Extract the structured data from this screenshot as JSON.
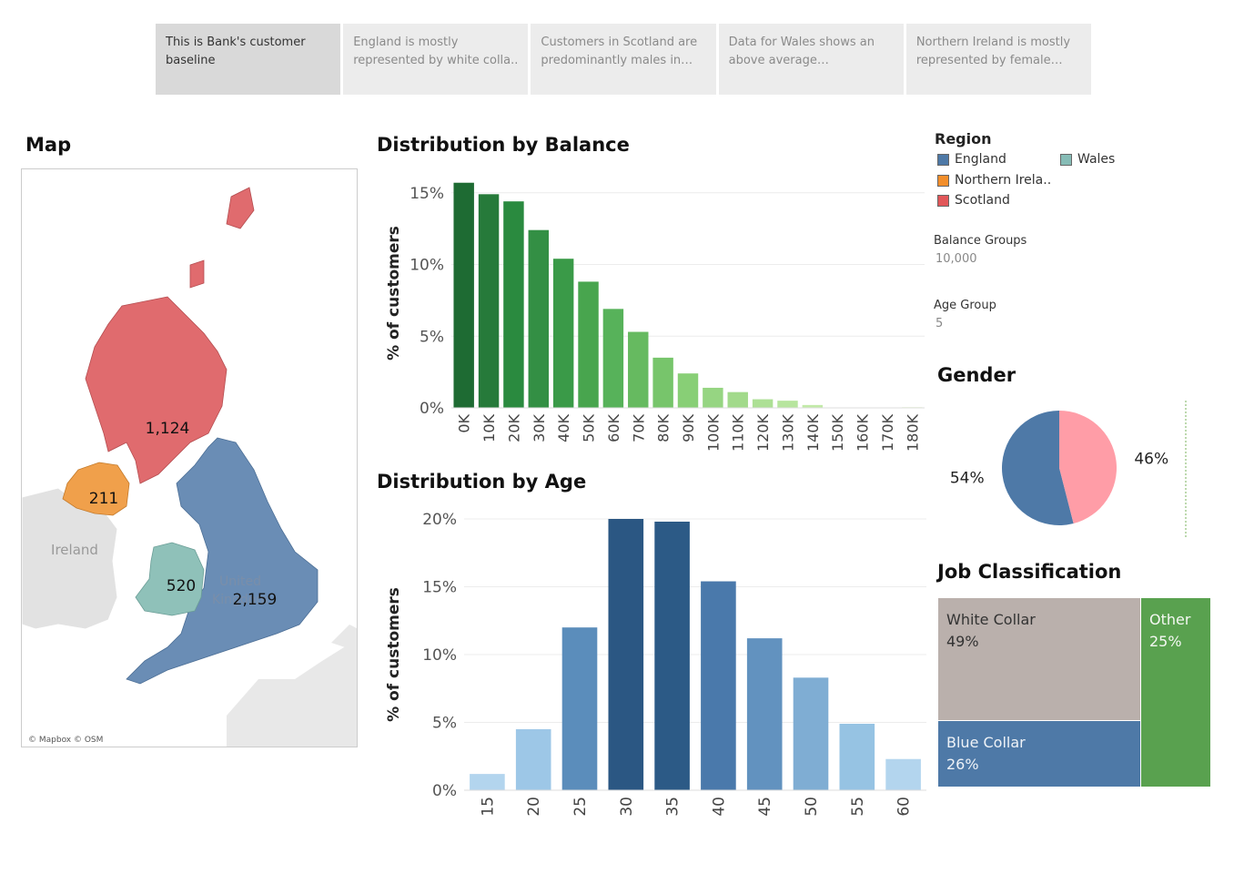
{
  "story_tabs": [
    {
      "label": "This is Bank's customer baseline",
      "active": true
    },
    {
      "label": "England is mostly represented by white colla..",
      "active": false
    },
    {
      "label": "Customers in Scotland are predominantly males in the..",
      "active": false
    },
    {
      "label": "Data for Wales shows an above average representat..",
      "active": false
    },
    {
      "label": "Northern Ireland is mostly represented by female cust..",
      "active": false
    }
  ],
  "map": {
    "title": "Map",
    "labels": {
      "ireland": "Ireland",
      "uk_line1": "United",
      "uk_line2": "Kingdom"
    },
    "regions": {
      "scotland": {
        "value": "1,124",
        "color": "#e06b6e"
      },
      "northern_ireland": {
        "value": "211",
        "color": "#f0a04b"
      },
      "wales": {
        "value": "520",
        "color": "#8fc1b9"
      },
      "england": {
        "value": "2,159",
        "color": "#6a8db5"
      }
    },
    "attribution": "© Mapbox © OSM"
  },
  "legend": {
    "title": "Region",
    "items": [
      {
        "label": "England",
        "color": "#4e79a7"
      },
      {
        "label": "Wales",
        "color": "#86bcb6"
      },
      {
        "label": "Northern Irela..",
        "color": "#f28e2b"
      },
      {
        "label": "Scotland",
        "color": "#e15759"
      }
    ]
  },
  "parameters": {
    "balance_groups_label": "Balance Groups",
    "balance_groups_value": "10,000",
    "age_group_label": "Age Group",
    "age_group_value": "5"
  },
  "chart_data": [
    {
      "type": "bar",
      "title": "Distribution by Balance",
      "ylabel": "% of customers",
      "categories": [
        "0K",
        "10K",
        "20K",
        "30K",
        "40K",
        "50K",
        "60K",
        "70K",
        "80K",
        "90K",
        "100K",
        "110K",
        "120K",
        "130K",
        "140K",
        "150K",
        "160K",
        "170K",
        "180K"
      ],
      "values": [
        15.7,
        14.9,
        14.4,
        12.4,
        10.4,
        8.8,
        6.9,
        5.3,
        3.5,
        2.4,
        1.4,
        1.1,
        0.6,
        0.5,
        0.2,
        0,
        0,
        0,
        0.05
      ],
      "ylim": [
        0,
        16
      ],
      "yticks": [
        "0%",
        "5%",
        "10%",
        "15%"
      ],
      "colors": [
        "#1e6b33",
        "#267a3a",
        "#2a8a3f",
        "#338f44",
        "#3a9a48",
        "#48a54e",
        "#57b25a",
        "#66ba60",
        "#77c56b",
        "#88cf76",
        "#96d582",
        "#a2da8b",
        "#ade095",
        "#b7e59e",
        "#c2eaa8",
        "#cdeeb3",
        "#d6f1bd",
        "#def4c6",
        "#e6f7cf"
      ],
      "grid": true
    },
    {
      "type": "bar",
      "title": "Distribution by Age",
      "ylabel": "% of customers",
      "categories": [
        "15",
        "20",
        "25",
        "30",
        "35",
        "40",
        "45",
        "50",
        "55",
        "60"
      ],
      "values": [
        1.2,
        4.5,
        12.0,
        20.0,
        19.8,
        15.4,
        11.2,
        8.3,
        4.9,
        2.3
      ],
      "ylim": [
        0,
        20
      ],
      "yticks": [
        "0%",
        "5%",
        "10%",
        "15%",
        "20%"
      ],
      "colors": [
        "#b3d5ee",
        "#9dc7e7",
        "#5b8dbb",
        "#2b5783",
        "#2c5a86",
        "#4a79ab",
        "#6292bf",
        "#7fadd3",
        "#96c3e3",
        "#b3d5ee"
      ],
      "grid": true
    },
    {
      "type": "pie",
      "title": "Gender",
      "slices": [
        {
          "label": "54%",
          "value": 54,
          "color": "#4e79a7"
        },
        {
          "label": "46%",
          "value": 46,
          "color": "#ff9da7"
        }
      ]
    },
    {
      "type": "table",
      "title": "Job Classification",
      "cells": [
        {
          "name": "White Collar",
          "pct": "49%",
          "value": 49,
          "color": "#bab0ac"
        },
        {
          "name": "Blue Collar",
          "pct": "26%",
          "value": 26,
          "color": "#4e79a7"
        },
        {
          "name": "Other",
          "pct": "25%",
          "value": 25,
          "color": "#59a14f"
        }
      ]
    }
  ]
}
